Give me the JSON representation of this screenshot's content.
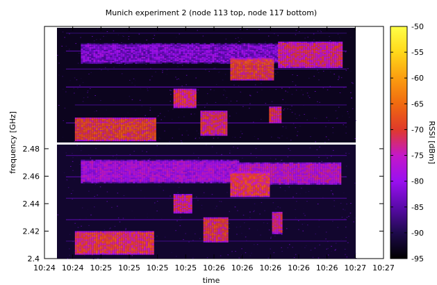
{
  "chart_data": {
    "type": "heatmap",
    "title": "Munich experiment 2 (node 113 top, node 117 bottom)",
    "xlabel": "time",
    "ylabel": "frequency [GHz]",
    "x_tick_labels": [
      "10:24",
      "10:24",
      "10:25",
      "10:25",
      "10:25",
      "10:25",
      "10:26",
      "10:26",
      "10:26",
      "10:26",
      "10:26",
      "10:27",
      "10:27"
    ],
    "y_tick_labels": [
      "2.4",
      "2.42",
      "2.44",
      "2.46",
      "2.48"
    ],
    "y_ticks": [
      2.4,
      2.42,
      2.44,
      2.46,
      2.48
    ],
    "ylim": [
      2.4,
      2.483
    ],
    "colorbar": {
      "label": "RSSI [dBm]",
      "range": [
        -95,
        -50
      ],
      "ticks": [
        -50,
        -55,
        -60,
        -65,
        -70,
        -75,
        -80,
        -85,
        -90,
        -95
      ],
      "tick_labels": [
        "-50",
        "-55",
        "-60",
        "-65",
        "-70",
        "-75",
        "-80",
        "-85",
        "-90",
        "-95"
      ],
      "colors": [
        "#000000",
        "#1e0a4c",
        "#5a0aaa",
        "#9a10f0",
        "#c418c8",
        "#e03a2a",
        "#f06a10",
        "#fb9d10",
        "#ffd81a",
        "#ffff48"
      ]
    },
    "panels": [
      {
        "name": "node 113",
        "background_rssi": -93,
        "bands": [
          {
            "freq_lo": 2.4095,
            "freq_hi": 2.4275,
            "t0": 0.03,
            "t1": 0.97,
            "rssi": -89,
            "thickness": 1.3
          },
          {
            "freq_lo": 2.4095,
            "freq_hi": 2.4275,
            "t0": 0.03,
            "t1": 0.97,
            "rssi": -86,
            "thickness": 1.3
          },
          {
            "freq_lo": 2.4095,
            "freq_hi": 2.4275,
            "t0": 0.03,
            "t1": 0.97,
            "rssi": -87,
            "thickness": 1.3
          },
          {
            "freq_lo": 2.4095,
            "freq_hi": 2.4275,
            "t0": 0.03,
            "t1": 0.97,
            "rssi": -86,
            "thickness": 1.5
          },
          {
            "freq_lo": 2.4095,
            "freq_hi": 2.4275,
            "t0": 0.06,
            "t1": 0.97,
            "rssi": -88,
            "thickness": 1.3
          },
          {
            "freq_lo": 2.4095,
            "freq_hi": 2.4275,
            "t0": 0.03,
            "t1": 0.97,
            "rssi": -86,
            "thickness": 1.3
          }
        ],
        "bursts": [
          {
            "t0": 0.08,
            "t1": 0.74,
            "f_lo": 2.457,
            "f_hi": 2.472,
            "rssi": -82
          },
          {
            "t0": 0.74,
            "t1": 0.95,
            "f_lo": 2.454,
            "f_hi": 2.473,
            "rssi": -73
          },
          {
            "t0": 0.58,
            "t1": 0.72,
            "f_lo": 2.445,
            "f_hi": 2.461,
            "rssi": -70
          },
          {
            "t0": 0.39,
            "t1": 0.46,
            "f_lo": 2.425,
            "f_hi": 2.439,
            "rssi": -72
          },
          {
            "t0": 0.48,
            "t1": 0.57,
            "f_lo": 2.405,
            "f_hi": 2.423,
            "rssi": -72
          },
          {
            "t0": 0.71,
            "t1": 0.75,
            "f_lo": 2.414,
            "f_hi": 2.426,
            "rssi": -72
          },
          {
            "t0": 0.06,
            "t1": 0.33,
            "f_lo": 2.401,
            "f_hi": 2.418,
            "rssi": -70
          }
        ]
      },
      {
        "name": "node 117",
        "background_rssi": -92,
        "bands": [
          {
            "freq_lo": 2.4095,
            "freq_hi": 2.4275,
            "t0": 0.03,
            "t1": 0.97,
            "rssi": -87,
            "thickness": 1.3
          },
          {
            "freq_lo": 2.4095,
            "freq_hi": 2.4275,
            "t0": 0.03,
            "t1": 0.97,
            "rssi": -86,
            "thickness": 1.3
          },
          {
            "freq_lo": 2.4095,
            "freq_hi": 2.4275,
            "t0": 0.03,
            "t1": 0.97,
            "rssi": -87,
            "thickness": 1.3
          },
          {
            "freq_lo": 2.4095,
            "freq_hi": 2.4275,
            "t0": 0.03,
            "t1": 0.97,
            "rssi": -86,
            "thickness": 1.3
          },
          {
            "freq_lo": 2.4095,
            "freq_hi": 2.4275,
            "t0": 0.03,
            "t1": 0.97,
            "rssi": -88,
            "thickness": 1.3
          }
        ],
        "bursts": [
          {
            "t0": 0.08,
            "t1": 0.61,
            "f_lo": 2.455,
            "f_hi": 2.472,
            "rssi": -78
          },
          {
            "t0": 0.61,
            "t1": 0.95,
            "f_lo": 2.454,
            "f_hi": 2.47,
            "rssi": -76
          },
          {
            "t0": 0.58,
            "t1": 0.71,
            "f_lo": 2.445,
            "f_hi": 2.463,
            "rssi": -71
          },
          {
            "t0": 0.39,
            "t1": 0.45,
            "f_lo": 2.433,
            "f_hi": 2.447,
            "rssi": -73
          },
          {
            "t0": 0.49,
            "t1": 0.57,
            "f_lo": 2.412,
            "f_hi": 2.43,
            "rssi": -71
          },
          {
            "t0": 0.72,
            "t1": 0.75,
            "f_lo": 2.418,
            "f_hi": 2.434,
            "rssi": -73
          },
          {
            "t0": 0.06,
            "t1": 0.32,
            "f_lo": 2.403,
            "f_hi": 2.42,
            "rssi": -71
          }
        ]
      }
    ]
  }
}
